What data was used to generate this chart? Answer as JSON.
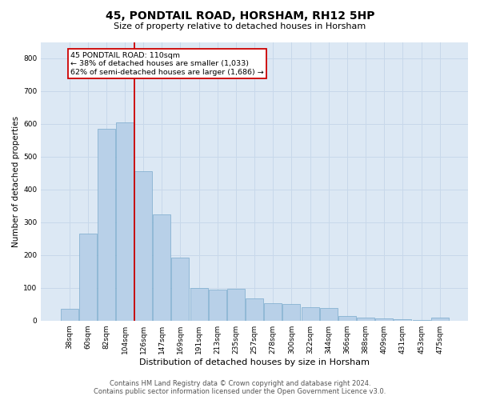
{
  "title": "45, PONDTAIL ROAD, HORSHAM, RH12 5HP",
  "subtitle": "Size of property relative to detached houses in Horsham",
  "xlabel": "Distribution of detached houses by size in Horsham",
  "ylabel": "Number of detached properties",
  "footer_line1": "Contains HM Land Registry data © Crown copyright and database right 2024.",
  "footer_line2": "Contains public sector information licensed under the Open Government Licence v3.0.",
  "categories": [
    "38sqm",
    "60sqm",
    "82sqm",
    "104sqm",
    "126sqm",
    "147sqm",
    "169sqm",
    "191sqm",
    "213sqm",
    "235sqm",
    "257sqm",
    "278sqm",
    "300sqm",
    "322sqm",
    "344sqm",
    "366sqm",
    "388sqm",
    "409sqm",
    "431sqm",
    "453sqm",
    "475sqm"
  ],
  "values": [
    37,
    265,
    585,
    605,
    455,
    325,
    192,
    100,
    95,
    97,
    68,
    52,
    50,
    40,
    38,
    15,
    8,
    6,
    4,
    2,
    8
  ],
  "bar_color": "#b8d0e8",
  "bar_edge_color": "#7aabcc",
  "vline_x": 3.5,
  "vline_color": "#cc0000",
  "annotation_box_ec": "#cc0000",
  "property_label": "45 PONDTAIL ROAD: 110sqm",
  "annotation_line1": "← 38% of detached houses are smaller (1,033)",
  "annotation_line2": "62% of semi-detached houses are larger (1,686) →",
  "grid_color": "#c8d8ea",
  "background_color": "#dce8f4",
  "ylim": [
    0,
    850
  ],
  "yticks": [
    0,
    100,
    200,
    300,
    400,
    500,
    600,
    700,
    800
  ],
  "title_fontsize": 10,
  "subtitle_fontsize": 8,
  "xlabel_fontsize": 8,
  "ylabel_fontsize": 7.5,
  "tick_fontsize": 6.5,
  "ann_fontsize": 6.8,
  "footer_fontsize": 6
}
